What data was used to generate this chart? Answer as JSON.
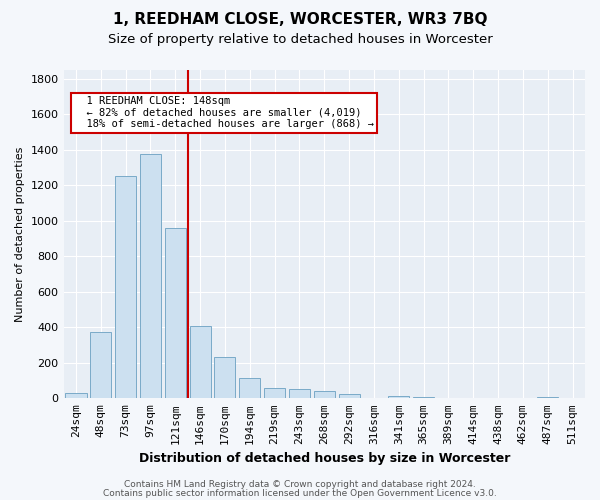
{
  "title": "1, REEDHAM CLOSE, WORCESTER, WR3 7BQ",
  "subtitle": "Size of property relative to detached houses in Worcester",
  "xlabel": "Distribution of detached houses by size in Worcester",
  "ylabel": "Number of detached properties",
  "categories": [
    "24sqm",
    "48sqm",
    "73sqm",
    "97sqm",
    "121sqm",
    "146sqm",
    "170sqm",
    "194sqm",
    "219sqm",
    "243sqm",
    "268sqm",
    "292sqm",
    "316sqm",
    "341sqm",
    "365sqm",
    "389sqm",
    "414sqm",
    "438sqm",
    "462sqm",
    "487sqm",
    "511sqm"
  ],
  "values": [
    30,
    375,
    1250,
    1375,
    960,
    410,
    235,
    115,
    60,
    55,
    40,
    25,
    2,
    15,
    5,
    2,
    1,
    1,
    1,
    10,
    1
  ],
  "bar_color": "#cce0f0",
  "bar_edge_color": "#7aaac8",
  "bar_edge_width": 0.7,
  "vline_x": 4.5,
  "vline_color": "#cc0000",
  "annotation_title": "1 REEDHAM CLOSE: 148sqm",
  "annotation_line1": "← 82% of detached houses are smaller (4,019)",
  "annotation_line2": "18% of semi-detached houses are larger (868) →",
  "annotation_box_color": "#cc0000",
  "ylim": [
    0,
    1850
  ],
  "yticks": [
    0,
    200,
    400,
    600,
    800,
    1000,
    1200,
    1400,
    1600,
    1800
  ],
  "footer1": "Contains HM Land Registry data © Crown copyright and database right 2024.",
  "footer2": "Contains public sector information licensed under the Open Government Licence v3.0.",
  "bg_color": "#f4f7fb",
  "plot_bg_color": "#e8eef5",
  "grid_color": "#ffffff",
  "title_fontsize": 11,
  "subtitle_fontsize": 9.5,
  "xlabel_fontsize": 9,
  "ylabel_fontsize": 8,
  "tick_fontsize": 8,
  "footer_fontsize": 6.5
}
